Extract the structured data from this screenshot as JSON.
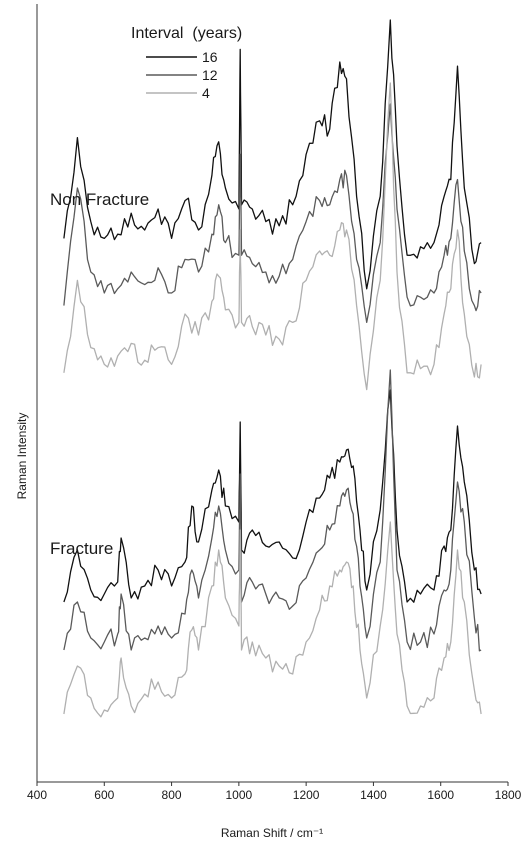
{
  "chart_data": {
    "type": "line",
    "xlabel": "Raman Shift / cm⁻¹",
    "ylabel": "Raman Intensity",
    "xlim": [
      400,
      1800
    ],
    "xticks": [
      400,
      600,
      800,
      1000,
      1200,
      1400,
      1600,
      1800
    ],
    "y_axis": "arbitrary units, spectra vertically offset",
    "grid": false,
    "legend": {
      "title": "Interval  (years)",
      "placement": "top-left",
      "entries": [
        "16",
        "12",
        "4"
      ]
    },
    "colors": {
      "16": "#111111",
      "12": "#5a5a5a",
      "4": "#b0b0b0"
    },
    "groups": [
      {
        "label": "Non Fracture",
        "series": [
          {
            "name": "16",
            "x": [
              480,
              520,
              560,
              600,
              640,
              680,
              720,
              760,
              800,
              840,
              880,
              920,
              940,
              960,
              1000,
              1004,
              1008,
              1040,
              1080,
              1120,
              1160,
              1200,
              1240,
              1270,
              1300,
              1320,
              1350,
              1380,
              1420,
              1450,
              1470,
              1500,
              1540,
              1580,
              1610,
              1630,
              1650,
              1670,
              1700,
              1720
            ],
            "y": [
              0.48,
              0.72,
              0.52,
              0.48,
              0.49,
              0.54,
              0.5,
              0.55,
              0.48,
              0.57,
              0.5,
              0.63,
              0.71,
              0.6,
              0.55,
              0.93,
              0.56,
              0.55,
              0.52,
              0.51,
              0.56,
              0.68,
              0.76,
              0.74,
              0.9,
              0.86,
              0.58,
              0.36,
              0.58,
              1.0,
              0.7,
              0.44,
              0.46,
              0.47,
              0.58,
              0.62,
              0.89,
              0.6,
              0.42,
              0.47
            ]
          },
          {
            "name": "12",
            "x": [
              480,
              520,
              560,
              600,
              640,
              680,
              720,
              760,
              800,
              840,
              880,
              920,
              940,
              960,
              1000,
              1004,
              1008,
              1040,
              1080,
              1120,
              1160,
              1200,
              1240,
              1270,
              1300,
              1320,
              1350,
              1380,
              1420,
              1450,
              1470,
              1500,
              1540,
              1580,
              1610,
              1630,
              1650,
              1670,
              1700,
              1720
            ],
            "y": [
              0.32,
              0.6,
              0.4,
              0.35,
              0.36,
              0.4,
              0.37,
              0.41,
              0.35,
              0.43,
              0.4,
              0.49,
              0.56,
              0.47,
              0.44,
              0.68,
              0.44,
              0.42,
              0.4,
              0.39,
              0.43,
              0.52,
              0.57,
              0.56,
              0.62,
              0.63,
              0.43,
              0.28,
              0.47,
              0.8,
              0.55,
              0.34,
              0.34,
              0.35,
              0.44,
              0.48,
              0.62,
              0.45,
              0.32,
              0.35
            ]
          },
          {
            "name": "4",
            "x": [
              480,
              520,
              560,
              600,
              640,
              680,
              720,
              760,
              800,
              840,
              880,
              920,
              940,
              960,
              1000,
              1004,
              1008,
              1040,
              1080,
              1120,
              1160,
              1200,
              1240,
              1270,
              1300,
              1320,
              1350,
              1380,
              1420,
              1450,
              1470,
              1500,
              1540,
              1580,
              1610,
              1630,
              1650,
              1670,
              1700,
              1720
            ],
            "y": [
              0.16,
              0.38,
              0.22,
              0.18,
              0.2,
              0.23,
              0.19,
              0.22,
              0.18,
              0.3,
              0.25,
              0.33,
              0.39,
              0.31,
              0.28,
              0.5,
              0.28,
              0.27,
              0.25,
              0.24,
              0.28,
              0.38,
              0.45,
              0.44,
              0.5,
              0.5,
              0.32,
              0.12,
              0.38,
              0.85,
              0.4,
              0.16,
              0.17,
              0.18,
              0.3,
              0.36,
              0.5,
              0.3,
              0.15,
              0.18
            ]
          }
        ]
      },
      {
        "label": "Fracture",
        "series": [
          {
            "name": "16",
            "x": [
              480,
              520,
              560,
              600,
              640,
              650,
              680,
              720,
              760,
              800,
              840,
              860,
              880,
              920,
              940,
              960,
              1000,
              1004,
              1008,
              1040,
              1080,
              1120,
              1160,
              1200,
              1240,
              1270,
              1300,
              1320,
              1340,
              1360,
              1380,
              1420,
              1450,
              1470,
              1500,
              1540,
              1580,
              1610,
              1630,
              1650,
              1670,
              1700,
              1720
            ],
            "y": [
              0.42,
              0.55,
              0.45,
              0.44,
              0.47,
              0.58,
              0.43,
              0.46,
              0.5,
              0.46,
              0.52,
              0.66,
              0.57,
              0.7,
              0.75,
              0.66,
              0.62,
              0.87,
              0.55,
              0.6,
              0.56,
              0.57,
              0.53,
              0.62,
              0.68,
              0.73,
              0.77,
              0.8,
              0.76,
              0.6,
              0.45,
              0.65,
              0.95,
              0.6,
              0.42,
              0.44,
              0.45,
              0.56,
              0.6,
              0.86,
              0.72,
              0.5,
              0.44
            ]
          },
          {
            "name": "12",
            "x": [
              480,
              520,
              560,
              600,
              640,
              650,
              680,
              720,
              760,
              800,
              840,
              860,
              880,
              920,
              940,
              960,
              1000,
              1004,
              1008,
              1040,
              1080,
              1120,
              1160,
              1200,
              1240,
              1270,
              1300,
              1320,
              1340,
              1360,
              1380,
              1420,
              1450,
              1470,
              1500,
              1540,
              1580,
              1610,
              1630,
              1650,
              1670,
              1700,
              1720
            ],
            "y": [
              0.3,
              0.42,
              0.33,
              0.32,
              0.34,
              0.44,
              0.3,
              0.33,
              0.36,
              0.33,
              0.39,
              0.5,
              0.43,
              0.58,
              0.66,
              0.55,
              0.5,
              0.74,
              0.42,
              0.47,
              0.44,
              0.43,
              0.41,
              0.48,
              0.55,
              0.6,
              0.66,
              0.7,
              0.64,
              0.46,
              0.33,
              0.52,
              1.0,
              0.5,
              0.32,
              0.32,
              0.34,
              0.45,
              0.5,
              0.72,
              0.62,
              0.38,
              0.3
            ]
          },
          {
            "name": "4",
            "x": [
              480,
              520,
              560,
              600,
              640,
              650,
              680,
              720,
              760,
              800,
              840,
              860,
              880,
              920,
              940,
              960,
              1000,
              1004,
              1008,
              1040,
              1080,
              1120,
              1160,
              1200,
              1240,
              1270,
              1300,
              1320,
              1340,
              1360,
              1380,
              1420,
              1450,
              1470,
              1500,
              1540,
              1580,
              1610,
              1630,
              1650,
              1670,
              1700,
              1720
            ],
            "y": [
              0.14,
              0.26,
              0.18,
              0.15,
              0.18,
              0.28,
              0.16,
              0.19,
              0.22,
              0.18,
              0.24,
              0.35,
              0.3,
              0.46,
              0.55,
              0.43,
              0.36,
              0.6,
              0.3,
              0.32,
              0.28,
              0.26,
              0.24,
              0.32,
              0.4,
              0.46,
              0.5,
              0.52,
              0.46,
              0.3,
              0.18,
              0.36,
              0.62,
              0.34,
              0.16,
              0.16,
              0.18,
              0.28,
              0.32,
              0.55,
              0.42,
              0.2,
              0.14
            ]
          }
        ]
      }
    ]
  }
}
